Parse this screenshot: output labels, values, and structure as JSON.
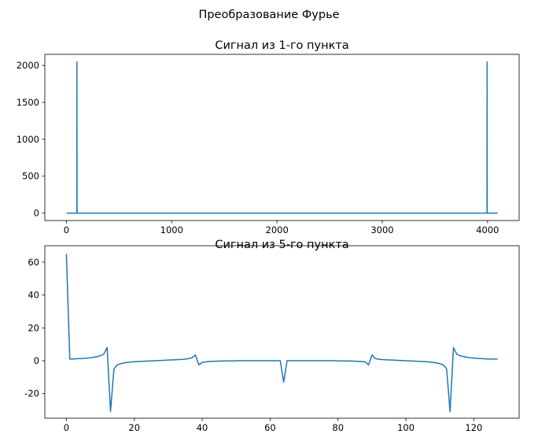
{
  "figure": {
    "suptitle": "Преобразование Фурье"
  },
  "chart_data": [
    {
      "type": "line",
      "title": "Сигнал из 1-го пункта",
      "xlabel": "",
      "ylabel": "",
      "xlim": [
        -205,
        4300
      ],
      "ylim": [
        -100,
        2150
      ],
      "xticks": [
        0,
        1000,
        2000,
        3000,
        4000
      ],
      "yticks": [
        0,
        500,
        1000,
        1500,
        2000
      ],
      "grid": false,
      "color": "#1f77b4",
      "series": [
        {
          "x": [
            0,
            99,
            100,
            101,
            3995,
            3996,
            3997,
            4095
          ],
          "y": [
            0,
            0,
            2048,
            0,
            0,
            2048,
            0,
            0
          ]
        }
      ]
    },
    {
      "type": "line",
      "title": "Сигнал из 5-го пункта",
      "xlabel": "",
      "ylabel": "",
      "xlim": [
        -6.35,
        133.35
      ],
      "ylim": [
        -35,
        70
      ],
      "xticks": [
        0,
        20,
        40,
        60,
        80,
        100,
        120
      ],
      "yticks": [
        -20,
        0,
        20,
        40,
        60
      ],
      "grid": false,
      "color": "#1f77b4",
      "series": [
        {
          "x": [
            0,
            1,
            2,
            3,
            4,
            5,
            6,
            7,
            8,
            9,
            10,
            11,
            12,
            13,
            14,
            15,
            16,
            17,
            18,
            19,
            20,
            21,
            22,
            23,
            24,
            25,
            26,
            27,
            28,
            29,
            30,
            31,
            32,
            33,
            34,
            35,
            36,
            37,
            38,
            39,
            40,
            41,
            42,
            43,
            44,
            45,
            46,
            47,
            48,
            49,
            50,
            51,
            52,
            53,
            54,
            55,
            56,
            57,
            58,
            59,
            60,
            61,
            62,
            63,
            64,
            65,
            66,
            67,
            68,
            69,
            70,
            71,
            72,
            73,
            74,
            75,
            76,
            77,
            78,
            79,
            80,
            81,
            82,
            83,
            84,
            85,
            86,
            87,
            88,
            89,
            90,
            91,
            92,
            93,
            94,
            95,
            96,
            97,
            98,
            99,
            100,
            101,
            102,
            103,
            104,
            105,
            106,
            107,
            108,
            109,
            110,
            111,
            112,
            113,
            114,
            115,
            116,
            117,
            118,
            119,
            120,
            121,
            122,
            123,
            124,
            125,
            126,
            127
          ],
          "y": [
            65,
            1,
            1.1,
            1.2,
            1.3,
            1.4,
            1.6,
            1.8,
            2.1,
            2.5,
            3.0,
            4.0,
            8.0,
            -31,
            -5,
            -2.5,
            -1.8,
            -1.3,
            -1.0,
            -0.8,
            -0.6,
            -0.5,
            -0.4,
            -0.3,
            -0.2,
            -0.1,
            0,
            0.1,
            0.2,
            0.3,
            0.4,
            0.5,
            0.6,
            0.7,
            0.8,
            1.0,
            1.3,
            1.8,
            3.5,
            -2.5,
            -1.0,
            -0.7,
            -0.5,
            -0.4,
            -0.3,
            -0.2,
            -0.2,
            -0.1,
            -0.1,
            -0.1,
            0,
            0,
            0,
            0,
            0,
            0,
            0,
            0,
            0,
            0,
            0,
            0,
            0,
            0,
            -13,
            0,
            0,
            0,
            0,
            0,
            0,
            0,
            0,
            0,
            0,
            0,
            0,
            0,
            0,
            0,
            -0.1,
            -0.1,
            -0.1,
            -0.2,
            -0.2,
            -0.3,
            -0.4,
            -0.5,
            -0.7,
            -2.5,
            3.5,
            1.3,
            0.9,
            0.7,
            0.6,
            0.5,
            0.4,
            0.3,
            0.2,
            0.1,
            0,
            -0.1,
            -0.2,
            -0.3,
            -0.4,
            -0.5,
            -0.6,
            -0.8,
            -1.0,
            -1.3,
            -1.8,
            -2.5,
            -5,
            -31,
            8,
            4,
            3,
            2.5,
            2.1,
            1.8,
            1.6,
            1.4,
            1.3,
            1.2,
            1.1,
            1.0,
            1.0,
            1.0
          ]
        }
      ]
    }
  ]
}
